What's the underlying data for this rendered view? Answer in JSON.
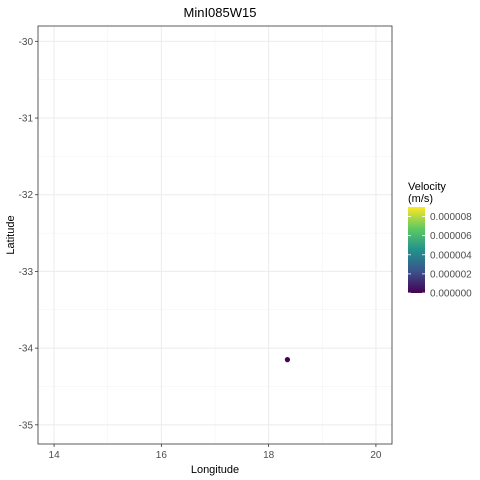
{
  "chart_data": {
    "type": "scatter",
    "title": "MinI085W15",
    "xlabel": "Longitude",
    "ylabel": "Latitude",
    "xlim": [
      13.7,
      20.3
    ],
    "ylim": [
      -35.25,
      -29.8
    ],
    "x_ticks": [
      14,
      16,
      18,
      20
    ],
    "y_ticks": [
      -30,
      -31,
      -32,
      -33,
      -34,
      -35
    ],
    "x_tick_labels": [
      "14",
      "16",
      "18",
      "20"
    ],
    "y_tick_labels": [
      "-30",
      "-31",
      "-32",
      "-33",
      "-34",
      "-35"
    ],
    "grid": true,
    "points": [
      {
        "x": 18.35,
        "y": -34.15,
        "velocity": 0.0
      }
    ],
    "point_color": "#440154",
    "legend": {
      "title_line1": "Velocity",
      "title_line2": "(m/s)",
      "placement": "right",
      "min": 0.0,
      "max": 9e-06,
      "breaks": [
        8e-06,
        6e-06,
        4e-06,
        2e-06,
        0.0
      ],
      "labels": [
        "0.000008",
        "0.000006",
        "0.000004",
        "0.000002",
        "0.000000"
      ],
      "colormap": [
        "#440154",
        "#3b528b",
        "#21918c",
        "#5ec962",
        "#fde725"
      ]
    }
  }
}
